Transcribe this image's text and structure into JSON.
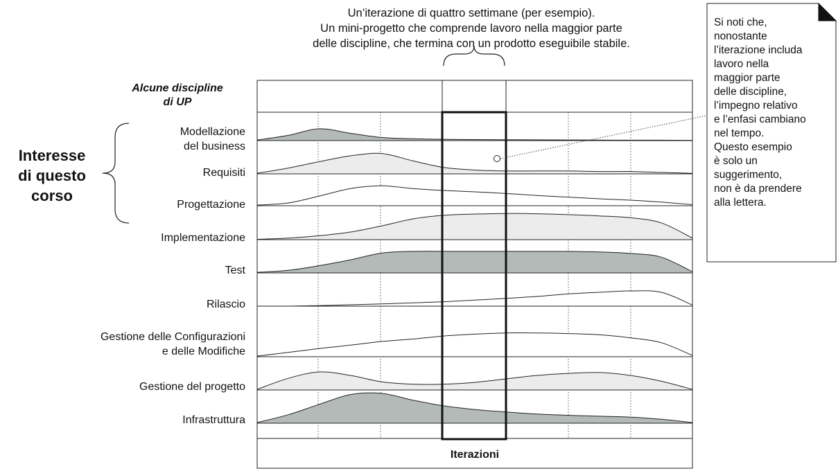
{
  "top_caption": [
    "Un’iterazione di quattro settimane (per esempio).",
    "Un mini-progetto che comprende lavoro nella maggior parte",
    "delle discipline, che termina con un prodotto eseguibile stabile."
  ],
  "disciplines_header": [
    "Alcune discipline",
    "di UP"
  ],
  "course_focus": [
    "Interesse",
    "di questo",
    "corso"
  ],
  "disciplines": [
    {
      "lines": [
        "Modellazione",
        "del business"
      ],
      "fill": "#b3bab8",
      "effort": [
        0.02,
        0.2,
        0.45,
        0.28,
        0.12,
        0.07,
        0.05,
        0.04,
        0.035,
        0.03,
        0.025,
        0.02,
        0.015,
        0.015,
        0.01
      ]
    },
    {
      "lines": [
        "Requisiti"
      ],
      "fill": "#ececec",
      "effort": [
        0.02,
        0.2,
        0.42,
        0.62,
        0.7,
        0.45,
        0.22,
        0.13,
        0.1,
        0.1,
        0.1,
        0.08,
        0.08,
        0.05,
        0.02
      ]
    },
    {
      "lines": [
        "Progettazione"
      ],
      "fill": "#ffffff",
      "effort": [
        0.02,
        0.1,
        0.35,
        0.62,
        0.72,
        0.62,
        0.55,
        0.5,
        0.44,
        0.37,
        0.31,
        0.25,
        0.2,
        0.13,
        0.04
      ]
    },
    {
      "lines": [
        "Implementazione"
      ],
      "fill": "#ececec",
      "effort": [
        0.01,
        0.05,
        0.13,
        0.25,
        0.45,
        0.68,
        0.8,
        0.84,
        0.86,
        0.85,
        0.82,
        0.78,
        0.72,
        0.55,
        0.05
      ]
    },
    {
      "lines": [
        "Test"
      ],
      "fill": "#b3bab8",
      "effort": [
        0.02,
        0.09,
        0.25,
        0.45,
        0.68,
        0.74,
        0.74,
        0.74,
        0.74,
        0.74,
        0.74,
        0.72,
        0.67,
        0.54,
        0.04
      ]
    },
    {
      "lines": [
        "Rilascio"
      ],
      "fill": "#ffffff",
      "effort": [
        0.0,
        0.0,
        0.02,
        0.05,
        0.08,
        0.12,
        0.16,
        0.22,
        0.28,
        0.35,
        0.44,
        0.5,
        0.55,
        0.5,
        0.04
      ]
    },
    {
      "lines": [
        "Gestione delle Configurazioni",
        "e delle Modifiche"
      ],
      "fill": "#ffffff",
      "effort": [
        0.02,
        0.14,
        0.27,
        0.38,
        0.5,
        0.58,
        0.68,
        0.74,
        0.78,
        0.78,
        0.76,
        0.72,
        0.62,
        0.46,
        0.04
      ]
    },
    {
      "lines": [
        "Gestione del progetto"
      ],
      "fill": "#ececec",
      "effort": [
        0.02,
        0.4,
        0.62,
        0.5,
        0.28,
        0.2,
        0.2,
        0.26,
        0.38,
        0.5,
        0.57,
        0.6,
        0.5,
        0.3,
        0.02
      ]
    },
    {
      "lines": [
        "Infrastruttura"
      ],
      "fill": "#b3bab8",
      "effort": [
        0.02,
        0.28,
        0.62,
        0.94,
        0.98,
        0.76,
        0.57,
        0.45,
        0.37,
        0.3,
        0.26,
        0.23,
        0.2,
        0.13,
        0.02
      ]
    }
  ],
  "side_note": [
    "Si noti che,",
    "nonostante",
    "l’iterazione includa",
    "lavoro nella",
    "maggior parte",
    "delle discipline,",
    "l’impegno relativo",
    "e l’enfasi cambiano",
    "nel tempo.",
    "Questo esempio",
    "è solo un",
    "suggerimento,",
    "non è da prendere",
    "alla lettera."
  ],
  "x_axis_label": "Iterazioni"
}
